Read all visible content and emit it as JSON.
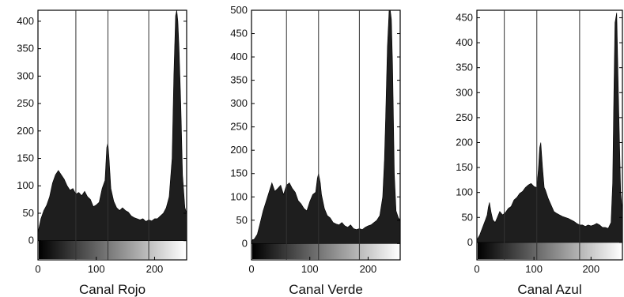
{
  "chart_data": [
    {
      "type": "area",
      "xlabel": "Canal Rojo",
      "ylabel": "",
      "xlim": [
        0,
        255
      ],
      "ylim": [
        -35,
        420
      ],
      "xticks": [
        0,
        100,
        200
      ],
      "yticks": [
        0,
        50,
        100,
        150,
        200,
        250,
        300,
        350,
        400
      ],
      "vlines": [
        65,
        120,
        190
      ],
      "grid": false,
      "colorbar": "grayscale gradient 0-255 below baseline",
      "series": [
        {
          "x": [
            0,
            5,
            10,
            15,
            20,
            25,
            30,
            35,
            40,
            45,
            50,
            55,
            60,
            65,
            70,
            75,
            80,
            85,
            90,
            95,
            100,
            105,
            110,
            115,
            118,
            120,
            122,
            125,
            130,
            135,
            140,
            145,
            150,
            155,
            160,
            165,
            170,
            175,
            180,
            185,
            190,
            195,
            200,
            205,
            210,
            215,
            220,
            225,
            230,
            233,
            236,
            238,
            240,
            242,
            245,
            248,
            252,
            255
          ],
          "y": [
            15,
            40,
            55,
            65,
            80,
            105,
            120,
            128,
            120,
            112,
            100,
            92,
            95,
            85,
            88,
            82,
            90,
            80,
            75,
            62,
            65,
            70,
            95,
            110,
            170,
            178,
            150,
            95,
            72,
            60,
            55,
            60,
            55,
            52,
            45,
            42,
            40,
            38,
            40,
            35,
            38,
            36,
            40,
            40,
            45,
            50,
            60,
            80,
            150,
            300,
            410,
            420,
            400,
            350,
            250,
            120,
            60,
            50
          ]
        }
      ]
    },
    {
      "type": "area",
      "xlabel": "Canal Verde",
      "ylabel": "",
      "xlim": [
        0,
        255
      ],
      "ylim": [
        -35,
        500
      ],
      "xticks": [
        0,
        100,
        200
      ],
      "yticks": [
        0,
        50,
        100,
        150,
        200,
        250,
        300,
        350,
        400,
        450,
        500
      ],
      "vlines": [
        60,
        115,
        185
      ],
      "grid": false,
      "colorbar": "grayscale gradient 0-255 below baseline",
      "series": [
        {
          "x": [
            0,
            5,
            10,
            15,
            20,
            25,
            30,
            35,
            40,
            45,
            50,
            55,
            60,
            65,
            70,
            75,
            80,
            85,
            90,
            95,
            100,
            105,
            110,
            113,
            115,
            118,
            120,
            125,
            130,
            135,
            140,
            145,
            150,
            155,
            160,
            165,
            170,
            175,
            180,
            185,
            190,
            195,
            200,
            205,
            210,
            215,
            220,
            225,
            228,
            230,
            233,
            236,
            238,
            240,
            242,
            245,
            248,
            252,
            255
          ],
          "y": [
            5,
            10,
            20,
            45,
            70,
            90,
            110,
            130,
            112,
            118,
            125,
            105,
            125,
            130,
            118,
            110,
            92,
            85,
            75,
            70,
            90,
            105,
            110,
            140,
            150,
            130,
            105,
            75,
            60,
            55,
            45,
            42,
            40,
            45,
            38,
            35,
            40,
            32,
            30,
            32,
            30,
            35,
            38,
            40,
            45,
            50,
            60,
            100,
            180,
            270,
            420,
            500,
            500,
            480,
            380,
            150,
            70,
            55,
            50
          ]
        }
      ]
    },
    {
      "type": "area",
      "xlabel": "Canal Azul",
      "ylabel": "",
      "xlim": [
        0,
        255
      ],
      "ylim": [
        -35,
        465
      ],
      "xticks": [
        0,
        100,
        200
      ],
      "yticks": [
        0,
        50,
        100,
        150,
        200,
        250,
        300,
        350,
        400,
        450
      ],
      "vlines": [
        48,
        105,
        180
      ],
      "grid": false,
      "colorbar": "grayscale gradient 0-255 below baseline",
      "series": [
        {
          "x": [
            0,
            5,
            10,
            15,
            18,
            20,
            22,
            25,
            28,
            32,
            35,
            40,
            45,
            50,
            55,
            60,
            65,
            70,
            75,
            80,
            85,
            90,
            95,
            100,
            105,
            108,
            110,
            112,
            115,
            118,
            120,
            125,
            130,
            135,
            140,
            145,
            150,
            155,
            160,
            165,
            170,
            175,
            180,
            185,
            190,
            195,
            200,
            205,
            210,
            215,
            220,
            225,
            230,
            235,
            238,
            240,
            242,
            245,
            248,
            252,
            255
          ],
          "y": [
            5,
            15,
            30,
            45,
            55,
            70,
            80,
            60,
            45,
            40,
            48,
            62,
            55,
            60,
            68,
            72,
            85,
            90,
            98,
            102,
            110,
            115,
            118,
            112,
            110,
            150,
            190,
            200,
            150,
            110,
            105,
            88,
            75,
            62,
            58,
            55,
            52,
            50,
            48,
            45,
            42,
            38,
            35,
            35,
            32,
            35,
            33,
            35,
            38,
            35,
            30,
            30,
            28,
            40,
            120,
            300,
            440,
            460,
            300,
            100,
            60
          ]
        }
      ]
    }
  ]
}
